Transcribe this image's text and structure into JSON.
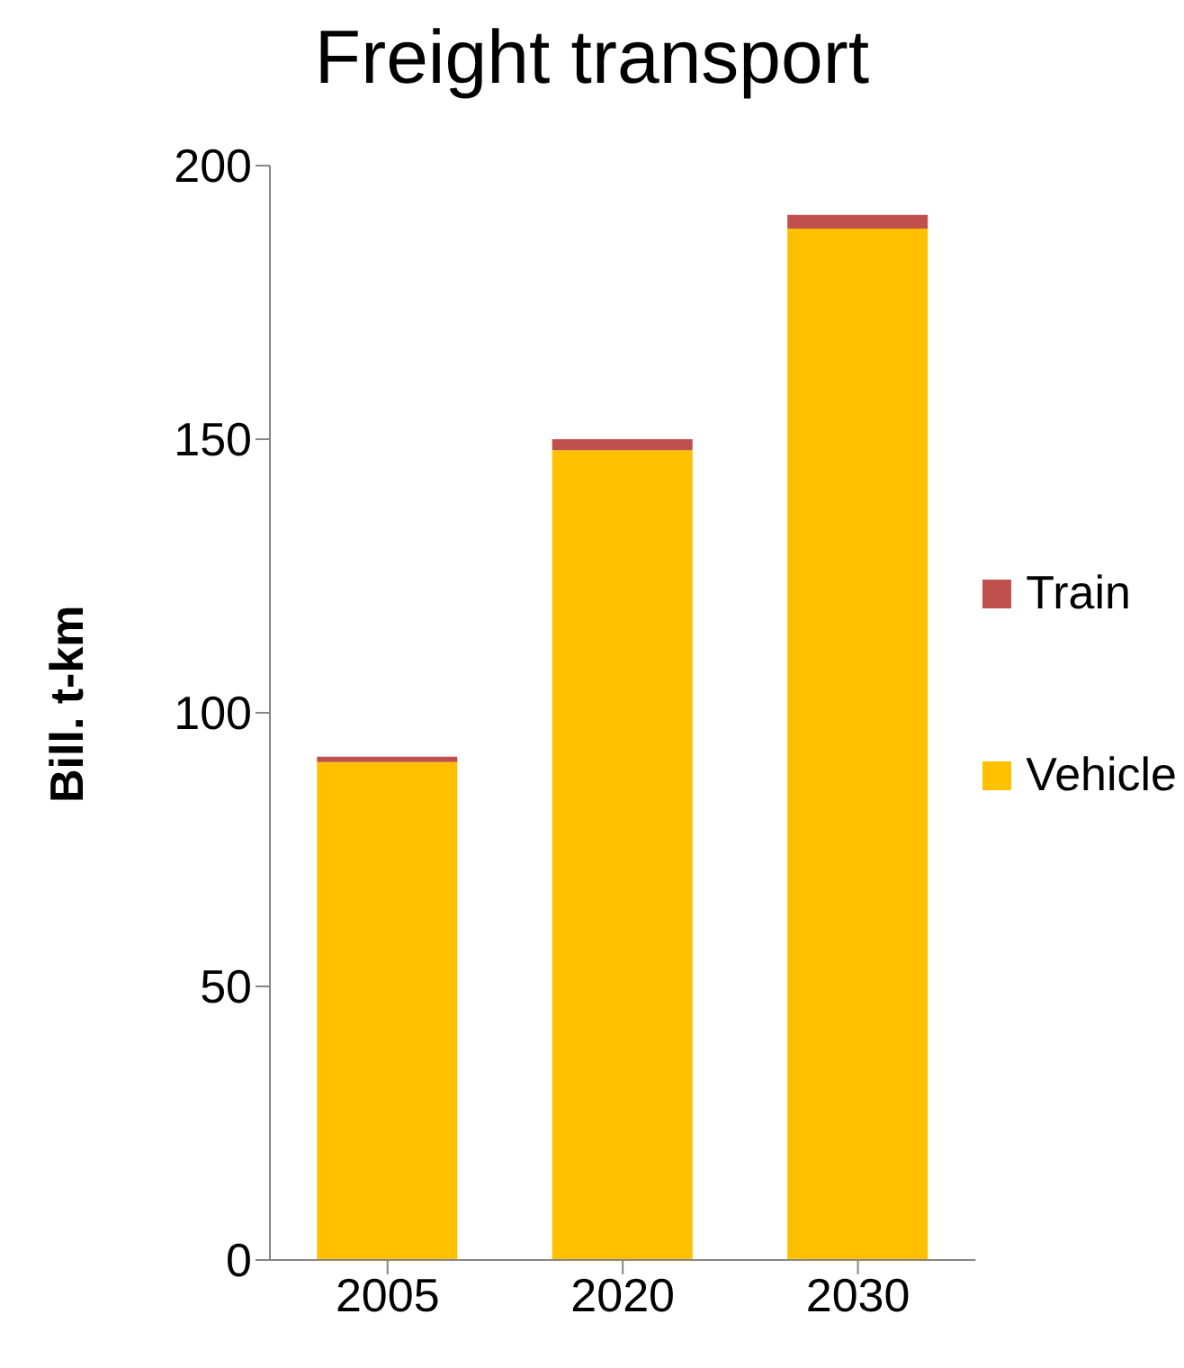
{
  "chart_data": {
    "type": "bar",
    "title": "Freight transport",
    "ylabel": "Bill. t-km",
    "categories": [
      "2005",
      "2020",
      "2030"
    ],
    "stacked": true,
    "series": [
      {
        "name": "Vehicle",
        "color": "#ffc000",
        "values": [
          91,
          148,
          188.5
        ]
      },
      {
        "name": "Train",
        "color": "#c0504d",
        "values": [
          1,
          2,
          2.5
        ]
      }
    ],
    "ylim": [
      0,
      200
    ],
    "yticks": [
      0,
      50,
      100,
      150,
      200
    ],
    "grid": false,
    "legend": "right"
  }
}
